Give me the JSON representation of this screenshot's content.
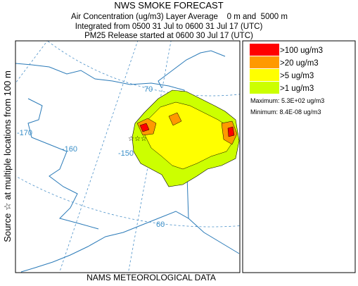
{
  "header": {
    "title": "NWS SMOKE FORECAST",
    "subtitle": "Air Concentration (ug/m3) Layer Average    0 m and  5000 m",
    "integrated": "Integrated from 0500 31 Jul to 0600 31 Jul 17 (UTC)",
    "release": "PM25 Release started at 0600 30 Jul 17 (UTC)"
  },
  "side_label": "Source ☆ at multiple locations from 100 m",
  "footer": "NAMS METEOROLOGICAL DATA",
  "legend": {
    "items": [
      {
        "label": ">100 ug/m3",
        "color": "#ff0000"
      },
      {
        "label": ">20 ug/m3",
        "color": "#ff9900"
      },
      {
        "label": ">5 ug/m3",
        "color": "#ffff00"
      },
      {
        "label": ">1 ug/m3",
        "color": "#ccff00"
      }
    ],
    "maximum": "Maximum: 5.3E+02 ug/m3",
    "minimum": "Minimum: 8.4E-08 ug/m3"
  },
  "map": {
    "grid_labels": [
      "70",
      "-170",
      "-160",
      "-150",
      "60"
    ]
  }
}
